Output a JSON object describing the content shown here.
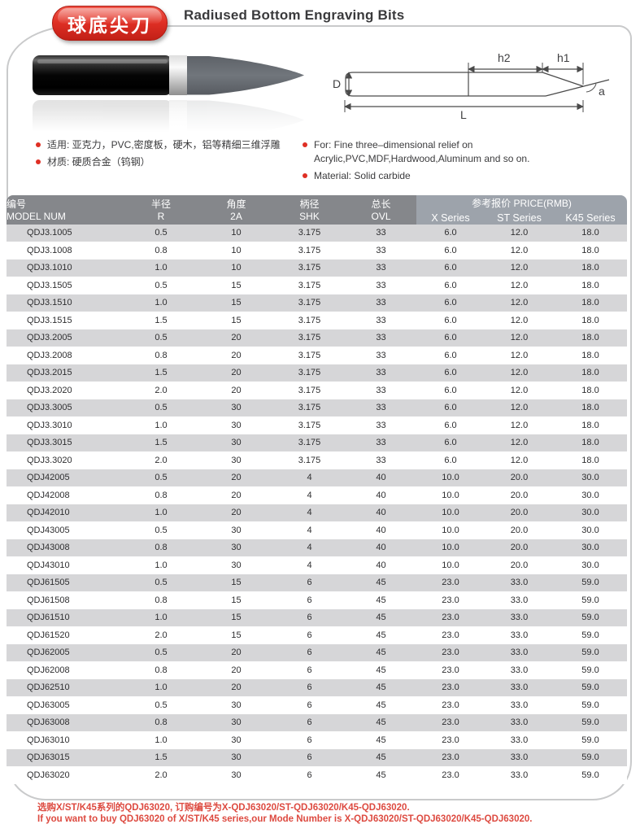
{
  "header": {
    "badge": "球底尖刀",
    "title": "Radiused Bottom Engraving Bits"
  },
  "intro": {
    "bullets_cn": [
      "适用: 亚克力，PVC,密度板，硬木，铝等精细三维浮雕",
      "材质: 硬质合金（钨钢）"
    ],
    "bullets_en": [
      "For: Fine three–dimensional relief on Acrylic,PVC,MDF,Hardwood,Aluminum and so on.",
      "Material: Solid carbide"
    ]
  },
  "diagram": {
    "labels": {
      "d": "D",
      "h2": "h2",
      "h1": "h1",
      "a": "a",
      "l": "L"
    }
  },
  "table": {
    "headers": {
      "model": {
        "cn": "编号",
        "en": "MODEL NUM"
      },
      "r": {
        "cn": "半径",
        "en": "R"
      },
      "angle": {
        "cn": "角度",
        "en": "2A"
      },
      "shk": {
        "cn": "柄径",
        "en": "SHK"
      },
      "ovl": {
        "cn": "总长",
        "en": "OVL"
      },
      "price_group": "参考报价 PRICE(RMB)",
      "price_cols": [
        "X Series",
        "ST Series",
        "K45 Series"
      ]
    },
    "rows": [
      [
        "QDJ3.1005",
        "0.5",
        "10",
        "3.175",
        "33",
        "6.0",
        "12.0",
        "18.0"
      ],
      [
        "QDJ3.1008",
        "0.8",
        "10",
        "3.175",
        "33",
        "6.0",
        "12.0",
        "18.0"
      ],
      [
        "QDJ3.1010",
        "1.0",
        "10",
        "3.175",
        "33",
        "6.0",
        "12.0",
        "18.0"
      ],
      [
        "QDJ3.1505",
        "0.5",
        "15",
        "3.175",
        "33",
        "6.0",
        "12.0",
        "18.0"
      ],
      [
        "QDJ3.1510",
        "1.0",
        "15",
        "3.175",
        "33",
        "6.0",
        "12.0",
        "18.0"
      ],
      [
        "QDJ3.1515",
        "1.5",
        "15",
        "3.175",
        "33",
        "6.0",
        "12.0",
        "18.0"
      ],
      [
        "QDJ3.2005",
        "0.5",
        "20",
        "3.175",
        "33",
        "6.0",
        "12.0",
        "18.0"
      ],
      [
        "QDJ3.2008",
        "0.8",
        "20",
        "3.175",
        "33",
        "6.0",
        "12.0",
        "18.0"
      ],
      [
        "QDJ3.2015",
        "1.5",
        "20",
        "3.175",
        "33",
        "6.0",
        "12.0",
        "18.0"
      ],
      [
        "QDJ3.2020",
        "2.0",
        "20",
        "3.175",
        "33",
        "6.0",
        "12.0",
        "18.0"
      ],
      [
        "QDJ3.3005",
        "0.5",
        "30",
        "3.175",
        "33",
        "6.0",
        "12.0",
        "18.0"
      ],
      [
        "QDJ3.3010",
        "1.0",
        "30",
        "3.175",
        "33",
        "6.0",
        "12.0",
        "18.0"
      ],
      [
        "QDJ3.3015",
        "1.5",
        "30",
        "3.175",
        "33",
        "6.0",
        "12.0",
        "18.0"
      ],
      [
        "QDJ3.3020",
        "2.0",
        "30",
        "3.175",
        "33",
        "6.0",
        "12.0",
        "18.0"
      ],
      [
        "QDJ42005",
        "0.5",
        "20",
        "4",
        "40",
        "10.0",
        "20.0",
        "30.0"
      ],
      [
        "QDJ42008",
        "0.8",
        "20",
        "4",
        "40",
        "10.0",
        "20.0",
        "30.0"
      ],
      [
        "QDJ42010",
        "1.0",
        "20",
        "4",
        "40",
        "10.0",
        "20.0",
        "30.0"
      ],
      [
        "QDJ43005",
        "0.5",
        "30",
        "4",
        "40",
        "10.0",
        "20.0",
        "30.0"
      ],
      [
        "QDJ43008",
        "0.8",
        "30",
        "4",
        "40",
        "10.0",
        "20.0",
        "30.0"
      ],
      [
        "QDJ43010",
        "1.0",
        "30",
        "4",
        "40",
        "10.0",
        "20.0",
        "30.0"
      ],
      [
        "QDJ61505",
        "0.5",
        "15",
        "6",
        "45",
        "23.0",
        "33.0",
        "59.0"
      ],
      [
        "QDJ61508",
        "0.8",
        "15",
        "6",
        "45",
        "23.0",
        "33.0",
        "59.0"
      ],
      [
        "QDJ61510",
        "1.0",
        "15",
        "6",
        "45",
        "23.0",
        "33.0",
        "59.0"
      ],
      [
        "QDJ61520",
        "2.0",
        "15",
        "6",
        "45",
        "23.0",
        "33.0",
        "59.0"
      ],
      [
        "QDJ62005",
        "0.5",
        "20",
        "6",
        "45",
        "23.0",
        "33.0",
        "59.0"
      ],
      [
        "QDJ62008",
        "0.8",
        "20",
        "6",
        "45",
        "23.0",
        "33.0",
        "59.0"
      ],
      [
        "QDJ62510",
        "1.0",
        "20",
        "6",
        "45",
        "23.0",
        "33.0",
        "59.0"
      ],
      [
        "QDJ63005",
        "0.5",
        "30",
        "6",
        "45",
        "23.0",
        "33.0",
        "59.0"
      ],
      [
        "QDJ63008",
        "0.8",
        "30",
        "6",
        "45",
        "23.0",
        "33.0",
        "59.0"
      ],
      [
        "QDJ63010",
        "1.0",
        "30",
        "6",
        "45",
        "23.0",
        "33.0",
        "59.0"
      ],
      [
        "QDJ63015",
        "1.5",
        "30",
        "6",
        "45",
        "23.0",
        "33.0",
        "59.0"
      ],
      [
        "QDJ63020",
        "2.0",
        "30",
        "6",
        "45",
        "23.0",
        "33.0",
        "59.0"
      ]
    ]
  },
  "footer": {
    "line_cn": "选购X/ST/K45系列的QDJ63020, 订购编号为X-QDJ63020/ST-QDJ63020/K45-QDJ63020.",
    "line_en": "If you want to buy QDJ63020 of X/ST/K45 series,our Mode Number is X-QDJ63020/ST-QDJ63020/K45-QDJ63020."
  },
  "colors": {
    "accent_red": "#df2f24",
    "header_dark": "#85878b",
    "header_light": "#9da3ab",
    "row_stripe": "#d6d6d8",
    "footer_red": "#dd4a40"
  }
}
